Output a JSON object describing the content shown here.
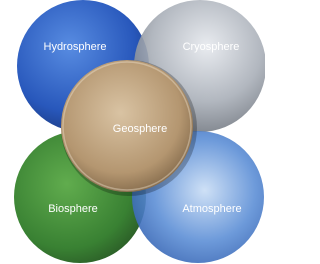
{
  "nodes": [
    {
      "label": "Hydrosphere"
    },
    {
      "label": "Cryosphere"
    },
    {
      "label": "Biosphere"
    },
    {
      "label": "Atmosphere"
    },
    {
      "label": "Geosphere"
    }
  ]
}
